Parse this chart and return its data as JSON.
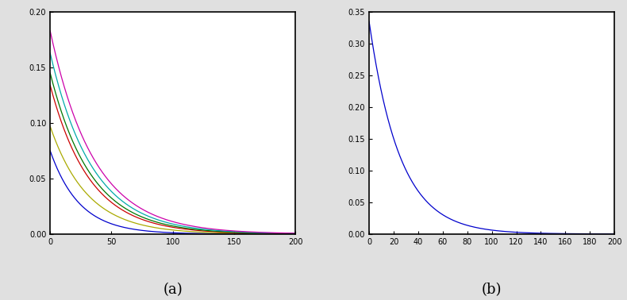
{
  "xlim": [
    0,
    200
  ],
  "n_points": 2000,
  "subplot_a": {
    "ylim": [
      0,
      0.2
    ],
    "yticks": [
      0,
      0.05,
      0.1,
      0.15,
      0.2
    ],
    "xticks": [
      0,
      50,
      100,
      150,
      200
    ],
    "curves": [
      {
        "A": 0.075,
        "decay": 0.042,
        "color": "#0000CC"
      },
      {
        "A": 0.097,
        "decay": 0.033,
        "color": "#AAAA00"
      },
      {
        "A": 0.134,
        "decay": 0.031,
        "color": "#CC0000"
      },
      {
        "A": 0.145,
        "decay": 0.03,
        "color": "#007700"
      },
      {
        "A": 0.163,
        "decay": 0.029,
        "color": "#00AAAA"
      },
      {
        "A": 0.183,
        "decay": 0.028,
        "color": "#CC00AA"
      }
    ],
    "label": "(a)"
  },
  "subplot_b": {
    "ylim": [
      0,
      0.35
    ],
    "yticks": [
      0,
      0.05,
      0.1,
      0.15,
      0.2,
      0.25,
      0.3,
      0.35
    ],
    "xticks": [
      0,
      20,
      40,
      60,
      80,
      100,
      120,
      140,
      160,
      180,
      200
    ],
    "A": 0.335,
    "decay": 0.04,
    "color": "#0000CC",
    "label": "(b)"
  },
  "label_fontsize": 13,
  "tick_fontsize": 7,
  "background_color": "#e0e0e0",
  "axes_color": "#ffffff",
  "linewidth": 0.9
}
